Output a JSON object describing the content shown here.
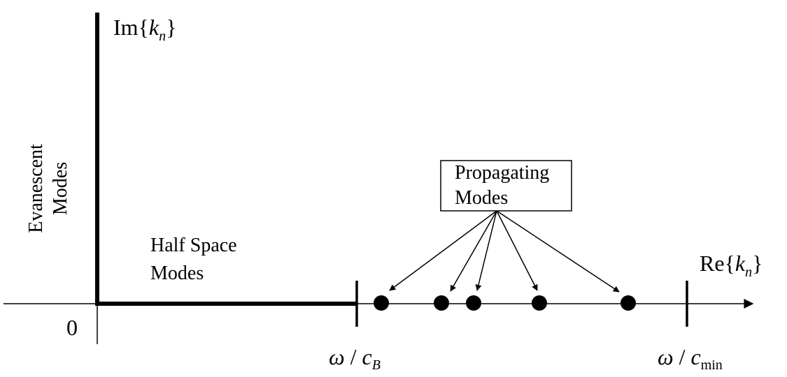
{
  "axes": {
    "imaginary": {
      "prefix": "Im{",
      "var": "k",
      "sub": "n",
      "suffix": "}"
    },
    "real": {
      "prefix": "Re{",
      "var": "k",
      "sub": "n",
      "suffix": "}"
    },
    "origin": "0"
  },
  "regions": {
    "evanescent": [
      "Evanescent",
      "Modes"
    ],
    "half_space": [
      "Half Space",
      "Modes"
    ],
    "propagating": [
      "Propagating",
      "Modes"
    ]
  },
  "markers": {
    "cb": {
      "omega": "ω",
      "slash": "/",
      "c": "c",
      "sub": "B"
    },
    "cmin": {
      "omega": "ω",
      "slash": "/",
      "c": "c",
      "sub": "min"
    }
  }
}
